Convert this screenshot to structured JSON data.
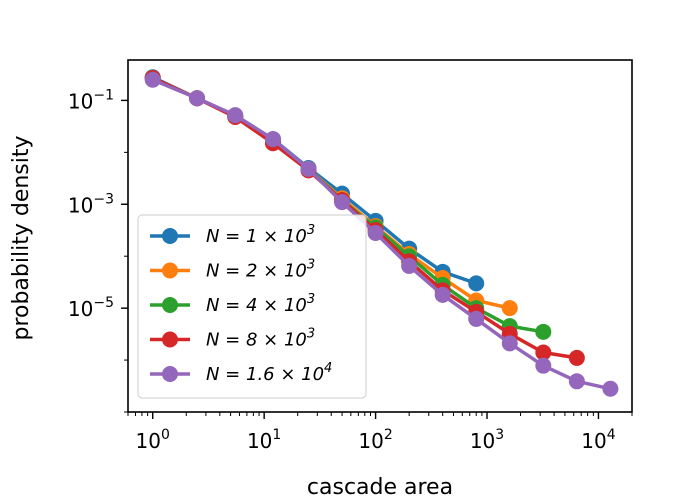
{
  "chart_data": {
    "type": "line",
    "title": "",
    "xlabel": "cascade area",
    "ylabel": "probability density",
    "xscale": "log",
    "yscale": "log",
    "xlim": [
      0.6,
      20000
    ],
    "ylim": [
      1e-07,
      0.6
    ],
    "x_ticks": [
      {
        "value": 1,
        "base": "10",
        "exp": "0"
      },
      {
        "value": 10,
        "base": "10",
        "exp": "1"
      },
      {
        "value": 100,
        "base": "10",
        "exp": "2"
      },
      {
        "value": 1000,
        "base": "10",
        "exp": "3"
      },
      {
        "value": 10000,
        "base": "10",
        "exp": "4"
      }
    ],
    "y_ticks": [
      {
        "value": 0.1,
        "base": "10",
        "exp": "−1"
      },
      {
        "value": 0.001,
        "base": "10",
        "exp": "−3"
      },
      {
        "value": 1e-05,
        "base": "10",
        "exp": "−5"
      }
    ],
    "legend_position": "lower-left",
    "series": [
      {
        "name": "N = 1 × 10^3",
        "label_prefix": "N = 1 × 10",
        "label_exp": "3",
        "color": "#1f77b4",
        "x": [
          1,
          2.5,
          5.5,
          12,
          25,
          50,
          100,
          200,
          400,
          800
        ],
        "y": [
          0.28,
          0.11,
          0.05,
          0.018,
          0.005,
          0.0016,
          0.00048,
          0.00014,
          5e-05,
          3e-05
        ]
      },
      {
        "name": "N = 2 × 10^3",
        "label_prefix": "N = 2 × 10",
        "label_exp": "3",
        "color": "#ff7f0e",
        "x": [
          1,
          2.5,
          5.5,
          12,
          25,
          50,
          100,
          200,
          400,
          800,
          1600
        ],
        "y": [
          0.27,
          0.11,
          0.05,
          0.016,
          0.0048,
          0.0013,
          0.00038,
          0.00011,
          3.8e-05,
          1.4e-05,
          1e-05
        ]
      },
      {
        "name": "N = 4 × 10^3",
        "label_prefix": "N = 4 × 10",
        "label_exp": "3",
        "color": "#2ca02c",
        "x": [
          1,
          2.5,
          5.5,
          12,
          25,
          50,
          100,
          200,
          400,
          800,
          1600,
          3200
        ],
        "y": [
          0.27,
          0.11,
          0.05,
          0.016,
          0.0048,
          0.0012,
          0.00036,
          0.0001,
          2.8e-05,
          1e-05,
          4.5e-06,
          3.5e-06
        ]
      },
      {
        "name": "N = 8 × 10^3",
        "label_prefix": "N = 8 × 10",
        "label_exp": "3",
        "color": "#d62728",
        "x": [
          1,
          2.5,
          5.5,
          12,
          25,
          50,
          100,
          200,
          400,
          800,
          1600,
          3200,
          6400
        ],
        "y": [
          0.27,
          0.11,
          0.048,
          0.015,
          0.0045,
          0.0012,
          0.00032,
          8e-05,
          2.2e-05,
          8.5e-06,
          3.2e-06,
          1.4e-06,
          1.1e-06
        ]
      },
      {
        "name": "N = 1.6 × 10^4",
        "label_prefix": "N = 1.6 × 10",
        "label_exp": "4",
        "color": "#9467bd",
        "x": [
          1,
          2.5,
          5.5,
          12,
          25,
          50,
          100,
          200,
          400,
          800,
          1600,
          3200,
          6400,
          12800
        ],
        "y": [
          0.25,
          0.11,
          0.052,
          0.018,
          0.0048,
          0.0011,
          0.00028,
          6.5e-05,
          1.8e-05,
          6.2e-06,
          2.1e-06,
          7.8e-07,
          3.9e-07,
          2.8e-07
        ]
      }
    ]
  }
}
